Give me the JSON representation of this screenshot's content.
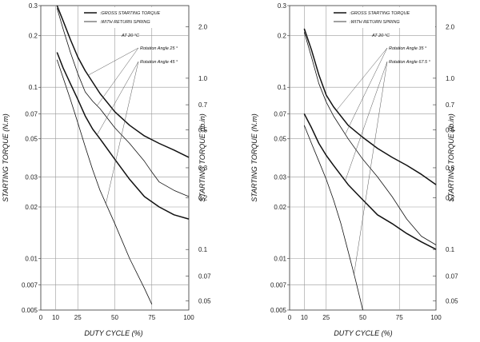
{
  "chart_data": [
    {
      "type": "line",
      "xlabel": "DUTY CYCLE (%)",
      "ylabel": "STARTING TORQUE (N.m)",
      "y2label": "STARTING TORQUE (lb.in)",
      "xlim": [
        0,
        100
      ],
      "ylim": [
        0.005,
        0.3
      ],
      "y2lim": [
        0.0443,
        2.655
      ],
      "yscale": "log",
      "x_ticks": [
        "0",
        "10",
        "25",
        "50",
        "75",
        "100"
      ],
      "x_tick_values": [
        0,
        10,
        25,
        50,
        75,
        100
      ],
      "y_ticks": [
        "0.005",
        "0.007",
        "0.01",
        "0.02",
        "0.03",
        "0.05",
        "0.07",
        "0.1",
        "0.2",
        "0.3"
      ],
      "y_tick_values": [
        0.005,
        0.007,
        0.01,
        0.02,
        0.03,
        0.05,
        0.07,
        0.1,
        0.2,
        0.3
      ],
      "y2_ticks": [
        "0.05",
        "0.07",
        "0.1",
        "0.2",
        "0.3",
        "0.5",
        "0.7",
        "1.0",
        "2.0"
      ],
      "y2_tick_values": [
        0.05,
        0.07,
        0.1,
        0.2,
        0.3,
        0.5,
        0.7,
        1.0,
        2.0
      ],
      "legend": [
        {
          "label": ":GROSS STARTING TORQUE",
          "style": "thick"
        },
        {
          "label": ":WITH RETURN SPRING",
          "style": "thin"
        }
      ],
      "conditions": "AT 20 °C",
      "annotations": [
        "Rotation Angle 25 °",
        "Rotation Angle 45 °"
      ],
      "series": [
        {
          "style": "thick",
          "x": [
            11,
            15,
            20,
            25,
            30,
            40,
            50,
            60,
            70,
            80,
            90,
            100
          ],
          "y": [
            0.3,
            0.245,
            0.19,
            0.15,
            0.125,
            0.092,
            0.072,
            0.06,
            0.052,
            0.047,
            0.043,
            0.039
          ]
        },
        {
          "style": "thin",
          "x": [
            11,
            15,
            20,
            25,
            30,
            35,
            40,
            50,
            60,
            70,
            75,
            80,
            90,
            100
          ],
          "y": [
            0.29,
            0.22,
            0.16,
            0.12,
            0.094,
            0.083,
            0.075,
            0.058,
            0.047,
            0.037,
            0.032,
            0.028,
            0.025,
            0.023
          ]
        },
        {
          "style": "thick",
          "x": [
            11,
            15,
            20,
            25,
            30,
            35,
            40,
            50,
            60,
            70,
            80,
            90,
            100
          ],
          "y": [
            0.16,
            0.13,
            0.105,
            0.085,
            0.068,
            0.057,
            0.05,
            0.038,
            0.029,
            0.023,
            0.02,
            0.018,
            0.017
          ]
        },
        {
          "style": "thin",
          "x": [
            11,
            15,
            20,
            25,
            30,
            35,
            40,
            50,
            60,
            70,
            75
          ],
          "y": [
            0.145,
            0.114,
            0.085,
            0.062,
            0.045,
            0.033,
            0.025,
            0.016,
            0.01,
            0.0067,
            0.0054
          ]
        }
      ]
    },
    {
      "type": "line",
      "xlabel": "DUTY CYCLE (%)",
      "ylabel": "STARTING TORQUE (N.m)",
      "y2label": "STARTING TORQUE (lb.in)",
      "xlim": [
        0,
        100
      ],
      "ylim": [
        0.005,
        0.3
      ],
      "y2lim": [
        0.0443,
        2.655
      ],
      "yscale": "log",
      "x_ticks": [
        "0",
        "10",
        "25",
        "50",
        "75",
        "100"
      ],
      "x_tick_values": [
        0,
        10,
        25,
        50,
        75,
        100
      ],
      "y_ticks": [
        "0.005",
        "0.007",
        "0.01",
        "0.02",
        "0.03",
        "0.05",
        "0.07",
        "0.1",
        "0.2",
        "0.3"
      ],
      "y_tick_values": [
        0.005,
        0.007,
        0.01,
        0.02,
        0.03,
        0.05,
        0.07,
        0.1,
        0.2,
        0.3
      ],
      "y2_ticks": [
        "0.05",
        "0.07",
        "0.1",
        "0.2",
        "0.3",
        "0.5",
        "0.7",
        "1.0",
        "2.0"
      ],
      "y2_tick_values": [
        0.05,
        0.07,
        0.1,
        0.2,
        0.3,
        0.5,
        0.7,
        1.0,
        2.0
      ],
      "legend": [
        {
          "label": ":GROSS STARTING TORQUE",
          "style": "thick"
        },
        {
          "label": ":WITH RETURN SPRING",
          "style": "thin"
        }
      ],
      "conditions": "AT 20 °C",
      "annotations": [
        "Rotation Angle 35 °",
        "Rotation Angle 67.5 °"
      ],
      "series": [
        {
          "style": "thick",
          "x": [
            10,
            15,
            20,
            25,
            30,
            40,
            50,
            60,
            70,
            80,
            90,
            100
          ],
          "y": [
            0.22,
            0.165,
            0.118,
            0.09,
            0.077,
            0.06,
            0.051,
            0.044,
            0.039,
            0.035,
            0.031,
            0.027
          ]
        },
        {
          "style": "thin",
          "x": [
            10,
            15,
            20,
            25,
            30,
            40,
            50,
            60,
            70,
            80,
            90,
            100
          ],
          "y": [
            0.21,
            0.15,
            0.105,
            0.082,
            0.068,
            0.05,
            0.038,
            0.03,
            0.023,
            0.017,
            0.0135,
            0.012
          ]
        },
        {
          "style": "thick",
          "x": [
            10,
            15,
            20,
            25,
            30,
            40,
            50,
            60,
            70,
            80,
            90,
            100
          ],
          "y": [
            0.07,
            0.058,
            0.047,
            0.04,
            0.035,
            0.027,
            0.022,
            0.018,
            0.016,
            0.014,
            0.0125,
            0.0113
          ]
        },
        {
          "style": "thin",
          "x": [
            10,
            15,
            20,
            25,
            30,
            35,
            40,
            45,
            50
          ],
          "y": [
            0.06,
            0.047,
            0.037,
            0.029,
            0.022,
            0.016,
            0.011,
            0.0075,
            0.005
          ]
        }
      ]
    }
  ]
}
